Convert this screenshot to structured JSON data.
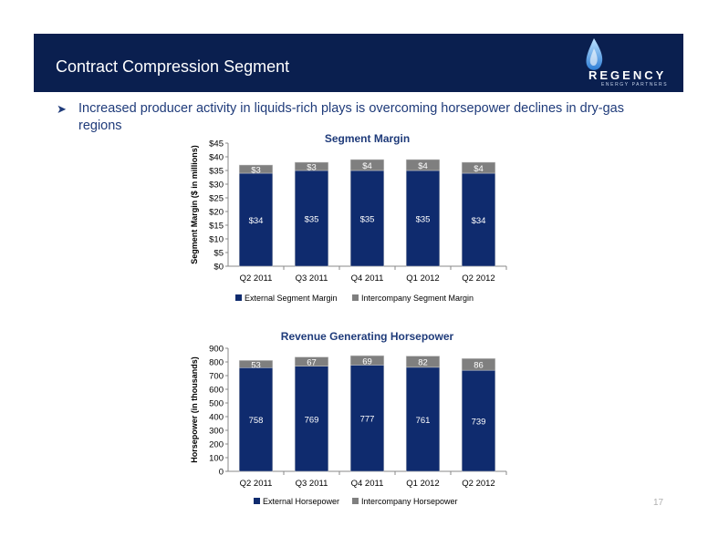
{
  "header": {
    "title": "Contract Compression Segment"
  },
  "logo": {
    "name": "REGENCY",
    "tagline": "ENERGY PARTNERS",
    "icon": "flame-drop-icon"
  },
  "bullet": {
    "text": "Increased producer activity in liquids-rich plays is overcoming horsepower declines in dry-gas regions"
  },
  "page_number": "17",
  "colors": {
    "header_bg": "#0a1f4f",
    "external": "#0f2b6e",
    "intercompany": "#7f7f7f",
    "title_text": "#1f3b7a"
  },
  "chart_data": [
    {
      "type": "bar",
      "stacked": true,
      "title": "Segment Margin",
      "ylabel": "Segment Margin ($ in millions)",
      "categories": [
        "Q2 2011",
        "Q3 2011",
        "Q4 2011",
        "Q1 2012",
        "Q2 2012"
      ],
      "series": [
        {
          "name": "External Segment Margin",
          "values": [
            34,
            35,
            35,
            35,
            34
          ],
          "labels": [
            "$34",
            "$35",
            "$35",
            "$35",
            "$34"
          ]
        },
        {
          "name": "Intercompany Segment Margin",
          "values": [
            3,
            3,
            4,
            4,
            4
          ],
          "labels": [
            "$3",
            "$3",
            "$4",
            "$4",
            "$4"
          ]
        }
      ],
      "ylim": [
        0,
        45
      ],
      "yticks": [
        "$0",
        "$5",
        "$10",
        "$15",
        "$20",
        "$25",
        "$30",
        "$35",
        "$40",
        "$45"
      ],
      "legend": "bottom"
    },
    {
      "type": "bar",
      "stacked": true,
      "title": "Revenue Generating Horsepower",
      "ylabel": "Horsepower (in thousands)",
      "categories": [
        "Q2 2011",
        "Q3 2011",
        "Q4 2011",
        "Q1 2012",
        "Q2 2012"
      ],
      "series": [
        {
          "name": "External Horsepower",
          "values": [
            758,
            769,
            777,
            761,
            739
          ],
          "labels": [
            "758",
            "769",
            "777",
            "761",
            "739"
          ]
        },
        {
          "name": "Intercompany Horsepower",
          "values": [
            53,
            67,
            69,
            82,
            86
          ],
          "labels": [
            "53",
            "67",
            "69",
            "82",
            "86"
          ]
        }
      ],
      "ylim": [
        0,
        900
      ],
      "yticks": [
        "0",
        "100",
        "200",
        "300",
        "400",
        "500",
        "600",
        "700",
        "800",
        "900"
      ],
      "legend": "bottom"
    }
  ]
}
